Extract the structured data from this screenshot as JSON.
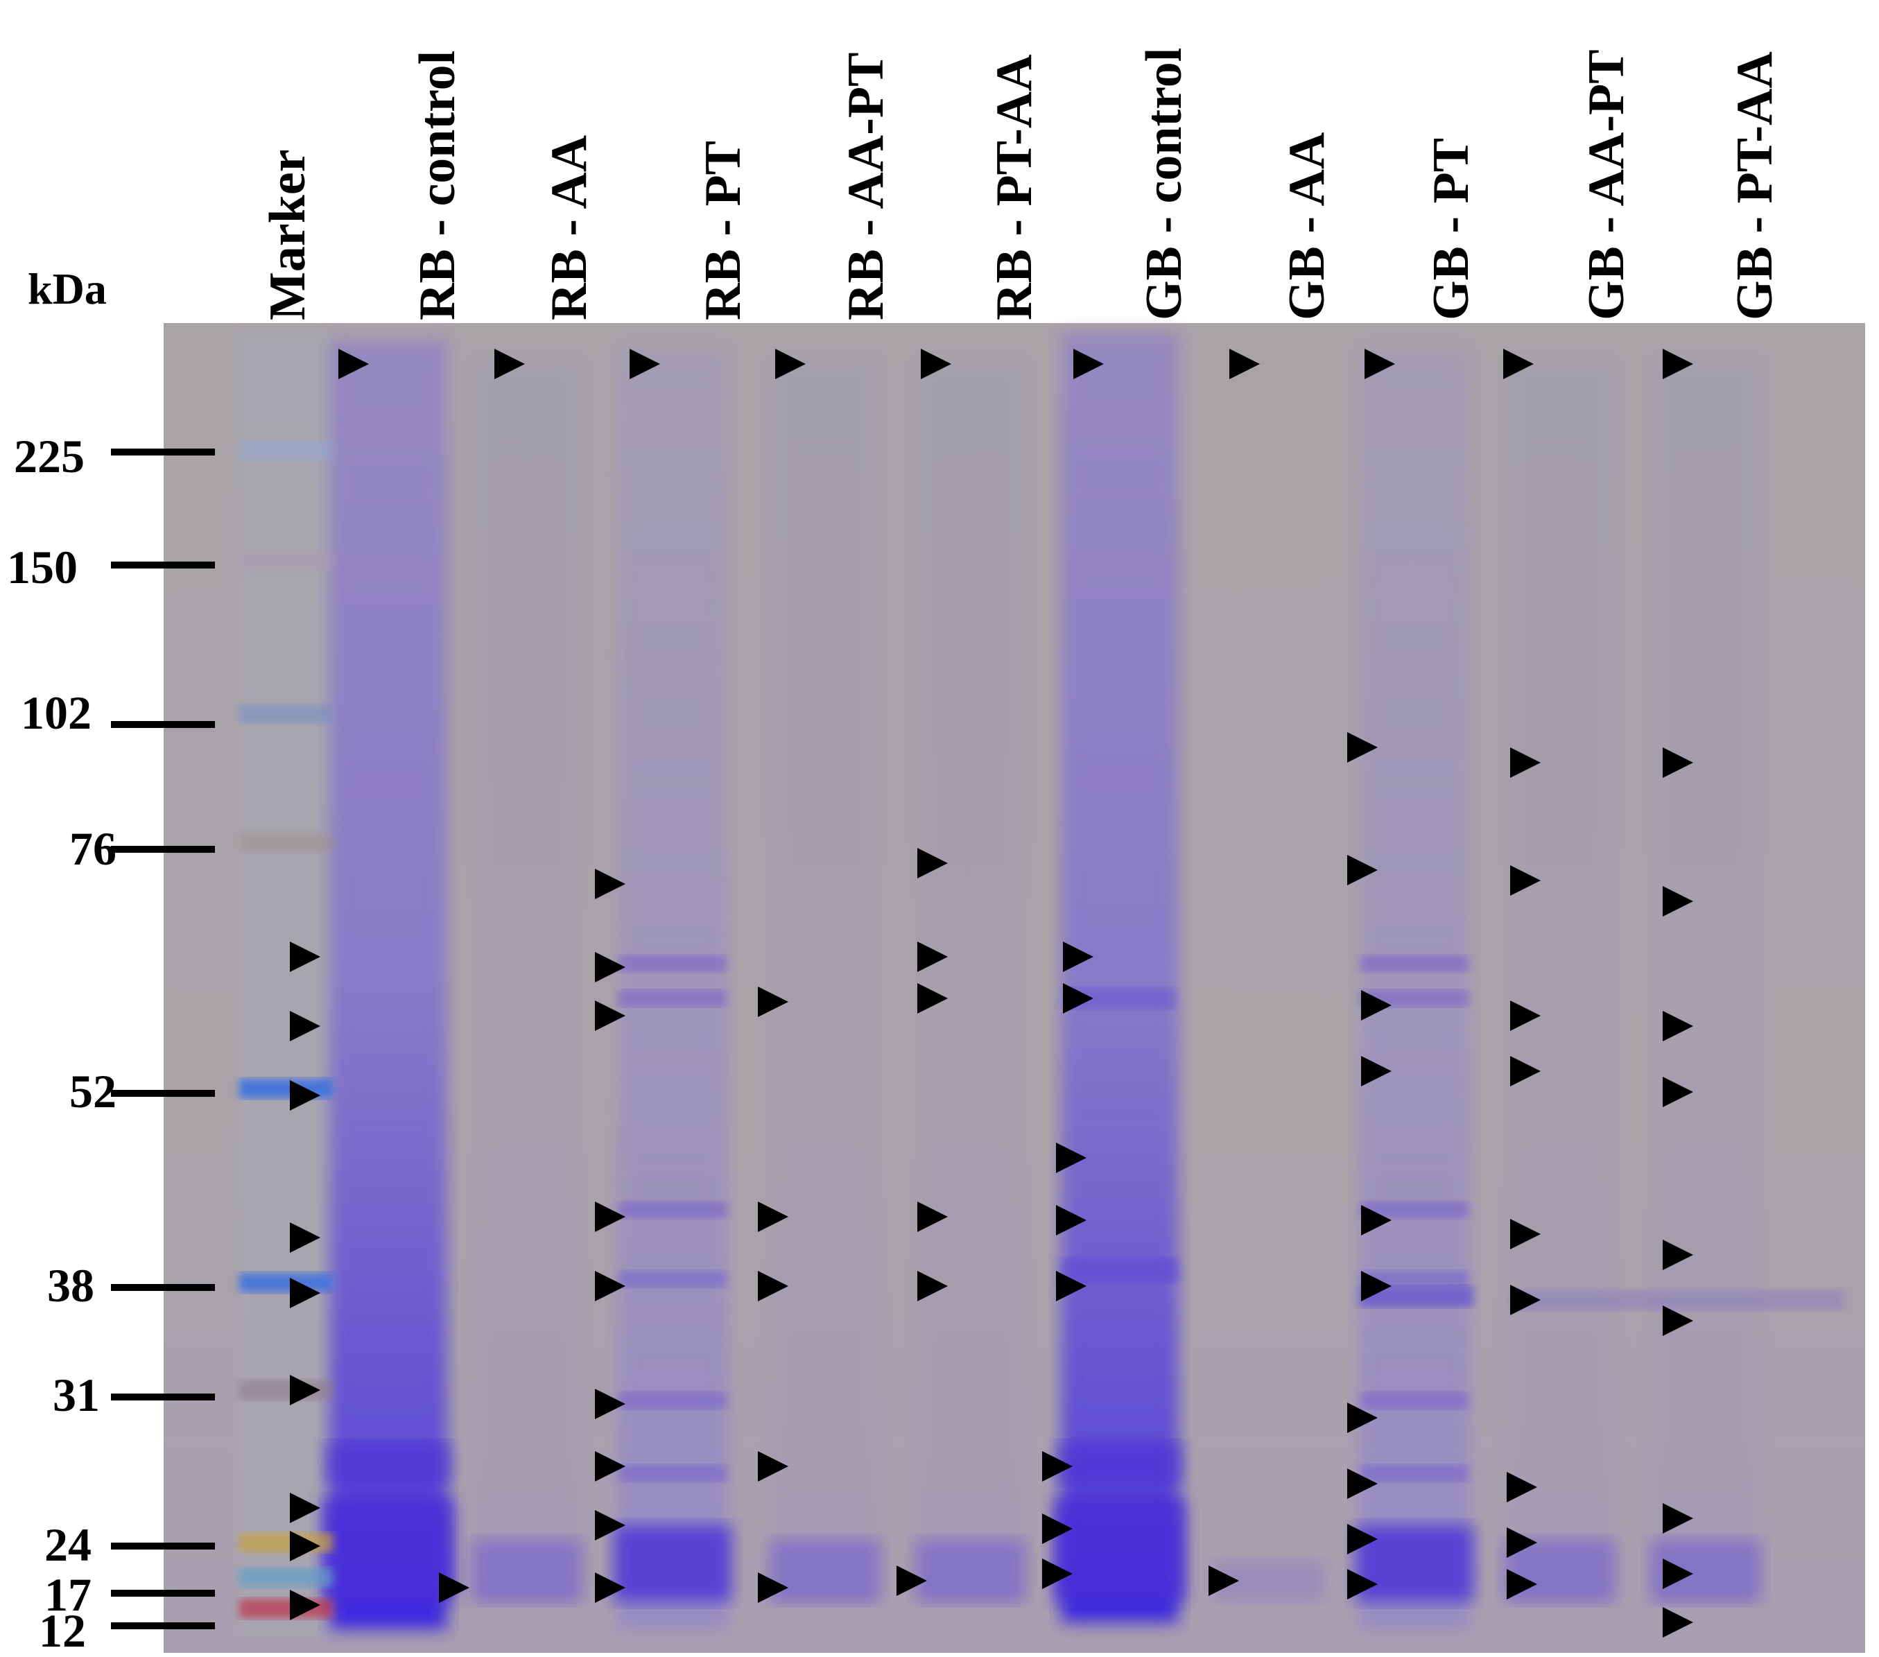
{
  "axis_title": "kDa",
  "lanes": [
    "Marker",
    "RB - control",
    "RB - AA",
    "RB - PT",
    "RB - AA-PT",
    "RB - PT-AA",
    "GB - control",
    "GB - AA",
    "GB - PT",
    "GB - AA-PT",
    "GB - PT-AA"
  ],
  "markers": [
    {
      "label": "225",
      "kda": 225
    },
    {
      "label": "150",
      "kda": 150
    },
    {
      "label": "102",
      "kda": 102
    },
    {
      "label": "76",
      "kda": 76
    },
    {
      "label": "52",
      "kda": 52
    },
    {
      "label": "38",
      "kda": 38
    },
    {
      "label": "31",
      "kda": 31
    },
    {
      "label": "24",
      "kda": 24
    },
    {
      "label": "17",
      "kda": 17
    },
    {
      "label": "12",
      "kda": 12
    }
  ],
  "colors": {
    "gel_background": "#a9a3a6",
    "stain": "#4a2fd8",
    "arrow": "#000000",
    "marker_blue": "#3b6fe0",
    "marker_yellow": "#c9a23a",
    "marker_red": "#c0304a"
  },
  "band_arrows_icon": "right-pointing-triangle-icon"
}
